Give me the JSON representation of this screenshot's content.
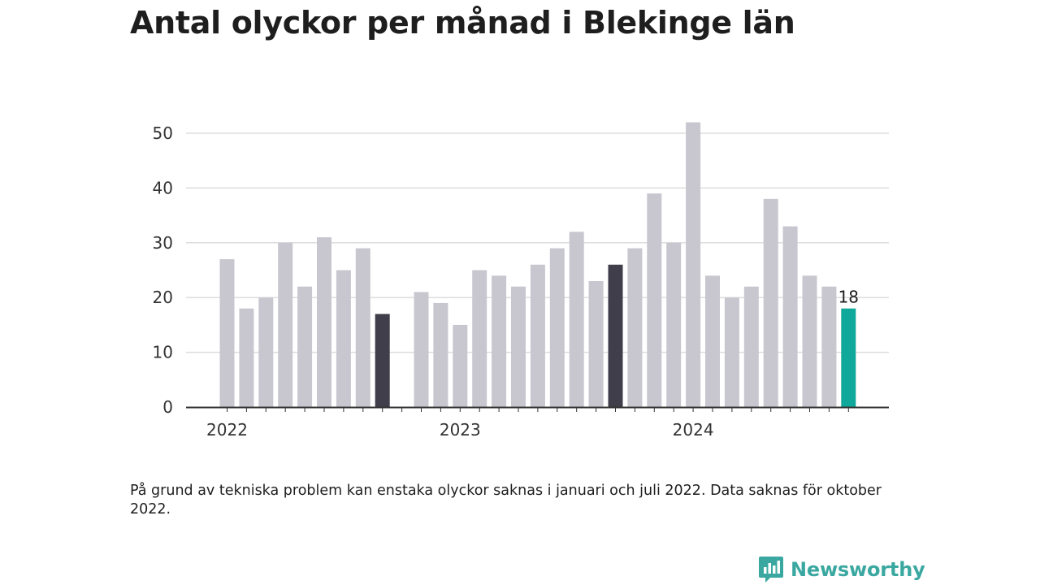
{
  "title": "Antal olyckor per månad i Blekinge län",
  "note": "På grund av tekniska problem kan enstaka olyckor saknas i januari och juli 2022. Data saknas för oktober 2022.",
  "brand": {
    "name": "Newsworthy",
    "icon": "newsworthy-logo-icon",
    "color": "#3aa8a0"
  },
  "chart_data": {
    "type": "bar",
    "title": "Antal olyckor per månad i Blekinge län",
    "xlabel": "",
    "ylabel": "",
    "ylim": [
      0,
      50
    ],
    "yticks": [
      0,
      10,
      20,
      30,
      40,
      50
    ],
    "grid": true,
    "x_tick_labels": [
      "2022",
      "2023",
      "2024"
    ],
    "categories": [
      "2022-01",
      "2022-02",
      "2022-03",
      "2022-04",
      "2022-05",
      "2022-06",
      "2022-07",
      "2022-08",
      "2022-09",
      "2022-10",
      "2022-11",
      "2022-12",
      "2023-01",
      "2023-02",
      "2023-03",
      "2023-04",
      "2023-05",
      "2023-06",
      "2023-07",
      "2023-08",
      "2023-09",
      "2023-10",
      "2023-11",
      "2023-12",
      "2024-01",
      "2024-02",
      "2024-03",
      "2024-04",
      "2024-05",
      "2024-06",
      "2024-07",
      "2024-08",
      "2024-09"
    ],
    "values": [
      27,
      18,
      20,
      30,
      22,
      31,
      25,
      29,
      17,
      null,
      21,
      19,
      15,
      25,
      24,
      22,
      26,
      29,
      32,
      23,
      26,
      29,
      39,
      30,
      52,
      24,
      20,
      22,
      38,
      33,
      24,
      22,
      18
    ],
    "highlighted": [
      "2022-09",
      "2023-09"
    ],
    "current": "2024-09",
    "labeled_value": 18,
    "colors": {
      "bar": "#c8c7cf",
      "highlight": "#3f3e4a",
      "current": "#0fa89b",
      "grid": "#dddddd",
      "axis": "#333333"
    }
  }
}
